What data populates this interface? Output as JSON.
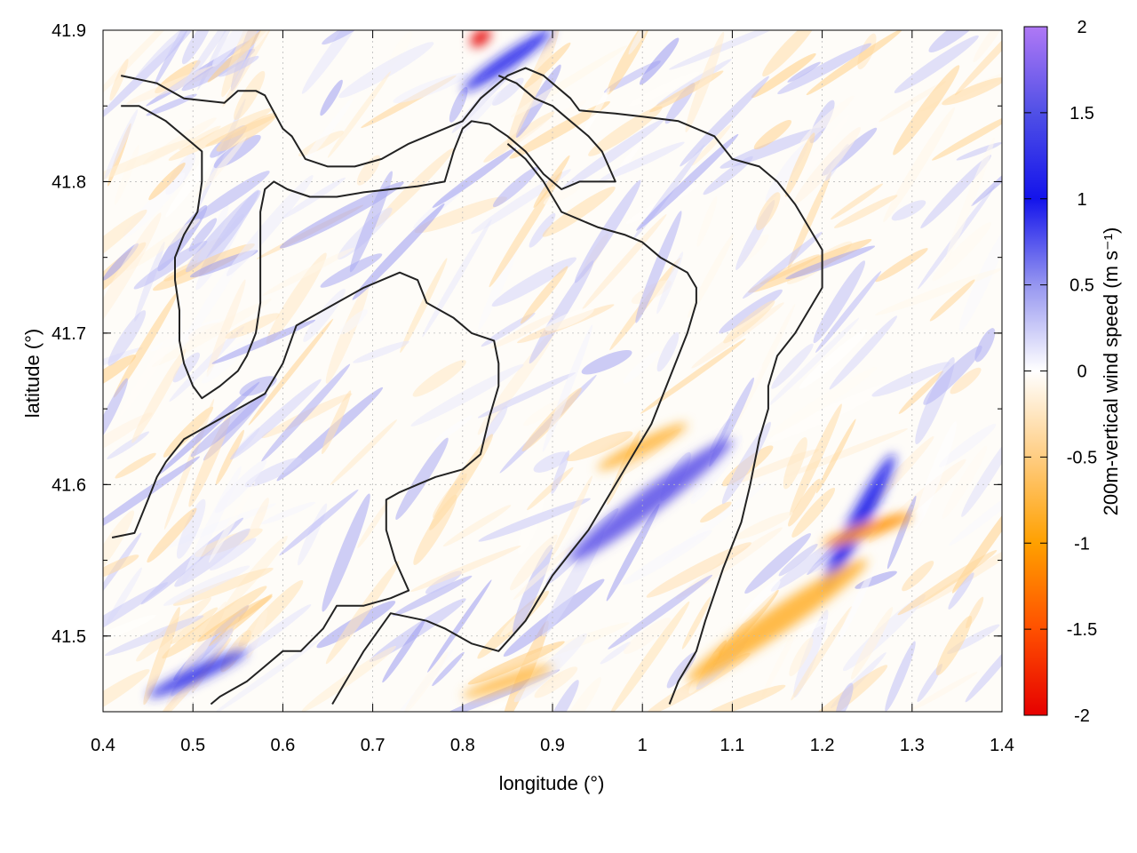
{
  "chart_data": {
    "type": "heatmap",
    "title": "",
    "xlabel": "longitude (°)",
    "ylabel": "latitude (°)",
    "colorbar_label": "200m-vertical wind speed (m s⁻¹)",
    "xlim": [
      0.4,
      1.4
    ],
    "ylim": [
      41.45,
      41.9
    ],
    "xticks": [
      "0.4",
      "0.5",
      "0.6",
      "0.7",
      "0.8",
      "0.9",
      "1",
      "1.1",
      "1.2",
      "1.3",
      "1.4"
    ],
    "yticks": [
      "41.5",
      "41.6",
      "41.7",
      "41.8",
      "41.9"
    ],
    "colorbar_ticks": [
      "2",
      "1.5",
      "1",
      "0.5",
      "0",
      "-0.5",
      "-1",
      "-1.5",
      "-2"
    ],
    "colorbar_range": [
      -2,
      2
    ],
    "grid": true,
    "colors": {
      "positive": "#2020e0",
      "max_positive": "#a878f0",
      "neutral": "#ffffff",
      "negative": "#ffa000",
      "min_negative": "#e00000",
      "contour": "#222222"
    },
    "features": [
      {
        "lon": [
          0.92,
          1.1
        ],
        "lat": [
          41.55,
          41.63
        ],
        "value": 1.6
      },
      {
        "lon": [
          0.45,
          0.56
        ],
        "lat": [
          41.46,
          41.49
        ],
        "value": 1.2
      },
      {
        "lon": [
          1.2,
          1.28
        ],
        "lat": [
          41.53,
          41.62
        ],
        "value": 1.0
      },
      {
        "lon": [
          0.8,
          0.9
        ],
        "lat": [
          41.86,
          41.9
        ],
        "value": 1.0
      },
      {
        "lon": [
          0.95,
          1.05
        ],
        "lat": [
          41.61,
          41.64
        ],
        "value": -0.8
      },
      {
        "lon": [
          1.2,
          1.3
        ],
        "lat": [
          41.56,
          41.58
        ],
        "value": -1.1
      },
      {
        "lon": [
          1.05,
          1.25
        ],
        "lat": [
          41.47,
          41.55
        ],
        "value": -0.8
      },
      {
        "lon": [
          0.8,
          0.9
        ],
        "lat": [
          41.46,
          41.48
        ],
        "value": -0.7
      },
      {
        "lon": [
          0.81,
          0.83
        ],
        "lat": [
          41.89,
          41.9
        ],
        "value": -2.0
      }
    ],
    "contours": [
      [
        [
          0.42,
          41.87
        ],
        [
          0.46,
          41.865
        ],
        [
          0.49,
          41.855
        ],
        [
          0.535,
          41.852
        ],
        [
          0.55,
          41.86
        ],
        [
          0.57,
          41.86
        ],
        [
          0.58,
          41.857
        ],
        [
          0.6,
          41.835
        ],
        [
          0.61,
          41.83
        ],
        [
          0.625,
          41.815
        ],
        [
          0.65,
          41.81
        ],
        [
          0.68,
          41.81
        ],
        [
          0.71,
          41.815
        ],
        [
          0.74,
          41.825
        ],
        [
          0.78,
          41.835
        ],
        [
          0.8,
          41.84
        ],
        [
          0.82,
          41.855
        ],
        [
          0.85,
          41.87
        ],
        [
          0.87,
          41.875
        ],
        [
          0.89,
          41.87
        ],
        [
          0.92,
          41.855
        ],
        [
          0.93,
          41.847
        ],
        [
          0.97,
          41.845
        ],
        [
          1.0,
          41.843
        ],
        [
          1.04,
          41.84
        ],
        [
          1.08,
          41.83
        ],
        [
          1.1,
          41.815
        ],
        [
          1.13,
          41.81
        ],
        [
          1.15,
          41.8
        ],
        [
          1.17,
          41.785
        ],
        [
          1.19,
          41.765
        ],
        [
          1.2,
          41.755
        ],
        [
          1.2,
          41.73
        ],
        [
          1.19,
          41.72
        ],
        [
          1.17,
          41.7
        ],
        [
          1.15,
          41.685
        ],
        [
          1.14,
          41.665
        ],
        [
          1.14,
          41.65
        ],
        [
          1.13,
          41.63
        ],
        [
          1.12,
          41.6
        ],
        [
          1.11,
          41.575
        ],
        [
          1.09,
          41.545
        ],
        [
          1.07,
          41.51
        ],
        [
          1.06,
          41.49
        ],
        [
          1.05,
          41.48
        ],
        [
          1.04,
          41.47
        ],
        [
          1.03,
          41.455
        ]
      ],
      [
        [
          0.42,
          41.85
        ],
        [
          0.44,
          41.85
        ],
        [
          0.47,
          41.84
        ],
        [
          0.49,
          41.83
        ],
        [
          0.51,
          41.82
        ],
        [
          0.51,
          41.8
        ],
        [
          0.505,
          41.78
        ],
        [
          0.49,
          41.765
        ],
        [
          0.48,
          41.75
        ],
        [
          0.48,
          41.735
        ],
        [
          0.485,
          41.715
        ],
        [
          0.485,
          41.695
        ],
        [
          0.49,
          41.68
        ],
        [
          0.5,
          41.665
        ],
        [
          0.51,
          41.657
        ],
        [
          0.53,
          41.665
        ],
        [
          0.55,
          41.675
        ],
        [
          0.56,
          41.685
        ],
        [
          0.57,
          41.7
        ],
        [
          0.575,
          41.72
        ],
        [
          0.575,
          41.74
        ],
        [
          0.575,
          41.76
        ],
        [
          0.575,
          41.78
        ],
        [
          0.58,
          41.795
        ],
        [
          0.59,
          41.8
        ],
        [
          0.605,
          41.795
        ],
        [
          0.63,
          41.79
        ],
        [
          0.66,
          41.79
        ],
        [
          0.69,
          41.793
        ],
        [
          0.72,
          41.795
        ],
        [
          0.75,
          41.797
        ],
        [
          0.78,
          41.8
        ],
        [
          0.79,
          41.82
        ],
        [
          0.8,
          41.835
        ],
        [
          0.81,
          41.84
        ],
        [
          0.83,
          41.838
        ],
        [
          0.85,
          41.83
        ],
        [
          0.87,
          41.82
        ],
        [
          0.89,
          41.805
        ],
        [
          0.91,
          41.795
        ],
        [
          0.93,
          41.8
        ],
        [
          0.95,
          41.8
        ],
        [
          0.97,
          41.8
        ],
        [
          0.955,
          41.82
        ],
        [
          0.94,
          41.83
        ],
        [
          0.92,
          41.84
        ],
        [
          0.9,
          41.85
        ],
        [
          0.88,
          41.855
        ],
        [
          0.86,
          41.865
        ],
        [
          0.84,
          41.87
        ]
      ],
      [
        [
          0.41,
          41.565
        ],
        [
          0.435,
          41.568
        ],
        [
          0.45,
          41.59
        ],
        [
          0.46,
          41.605
        ],
        [
          0.47,
          41.615
        ],
        [
          0.49,
          41.63
        ],
        [
          0.52,
          41.64
        ],
        [
          0.55,
          41.65
        ],
        [
          0.58,
          41.66
        ],
        [
          0.6,
          41.68
        ],
        [
          0.615,
          41.705
        ],
        [
          0.63,
          41.71
        ],
        [
          0.66,
          41.72
        ],
        [
          0.69,
          41.73
        ],
        [
          0.73,
          41.74
        ],
        [
          0.75,
          41.735
        ],
        [
          0.76,
          41.72
        ],
        [
          0.79,
          41.71
        ],
        [
          0.81,
          41.7
        ],
        [
          0.835,
          41.695
        ],
        [
          0.84,
          41.68
        ],
        [
          0.84,
          41.665
        ],
        [
          0.83,
          41.645
        ],
        [
          0.82,
          41.62
        ],
        [
          0.8,
          41.61
        ],
        [
          0.77,
          41.605
        ],
        [
          0.75,
          41.6
        ],
        [
          0.73,
          41.595
        ],
        [
          0.715,
          41.59
        ],
        [
          0.715,
          41.57
        ],
        [
          0.725,
          41.55
        ],
        [
          0.74,
          41.53
        ],
        [
          0.72,
          41.525
        ],
        [
          0.69,
          41.52
        ],
        [
          0.66,
          41.52
        ],
        [
          0.645,
          41.505
        ],
        [
          0.62,
          41.49
        ],
        [
          0.6,
          41.49
        ],
        [
          0.58,
          41.48
        ],
        [
          0.56,
          41.47
        ],
        [
          0.53,
          41.46
        ],
        [
          0.52,
          41.455
        ]
      ],
      [
        [
          0.655,
          41.455
        ],
        [
          0.67,
          41.47
        ],
        [
          0.69,
          41.49
        ],
        [
          0.72,
          41.515
        ],
        [
          0.76,
          41.51
        ],
        [
          0.78,
          41.505
        ],
        [
          0.81,
          41.495
        ],
        [
          0.84,
          41.49
        ],
        [
          0.855,
          41.5
        ],
        [
          0.87,
          41.51
        ],
        [
          0.88,
          41.52
        ],
        [
          0.9,
          41.54
        ],
        [
          0.92,
          41.555
        ],
        [
          0.94,
          41.57
        ],
        [
          0.96,
          41.59
        ],
        [
          0.98,
          41.61
        ],
        [
          0.995,
          41.625
        ],
        [
          1.01,
          41.64
        ],
        [
          1.03,
          41.67
        ],
        [
          1.05,
          41.7
        ],
        [
          1.06,
          41.72
        ],
        [
          1.06,
          41.73
        ],
        [
          1.05,
          41.74
        ],
        [
          1.02,
          41.75
        ],
        [
          1.0,
          41.76
        ],
        [
          0.98,
          41.765
        ],
        [
          0.95,
          41.77
        ],
        [
          0.93,
          41.775
        ],
        [
          0.91,
          41.78
        ],
        [
          0.9,
          41.79
        ],
        [
          0.89,
          41.8
        ],
        [
          0.87,
          41.815
        ],
        [
          0.85,
          41.825
        ]
      ]
    ]
  }
}
